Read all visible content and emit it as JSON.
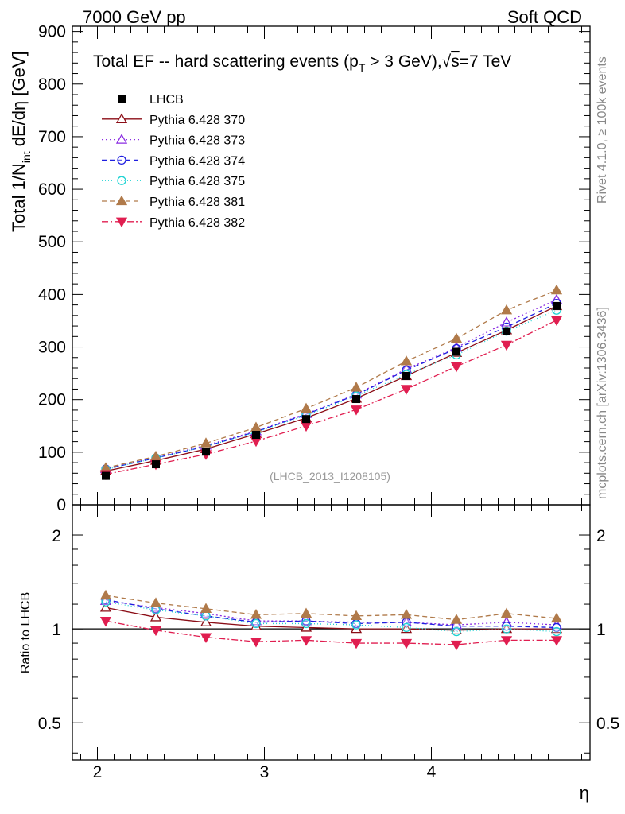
{
  "header": {
    "left": "7000 GeV pp",
    "right": "Soft QCD"
  },
  "side_labels": {
    "top": "Rivet 4.1.0, ≥ 100k events",
    "bottom": "mcplots.cern.ch [arXiv:1306.3436]"
  },
  "watermark": "(LHCB_2013_I1208105)",
  "chart_data": {
    "type": "line",
    "title_parts": {
      "pre": "Total EF -- hard scattering events (p",
      "sub": "T",
      "post": " > 3 GeV),",
      "sqrt": "√",
      "s_label": "s",
      "energy": "=7 TeV"
    },
    "ylabel_parts": {
      "pre": "Total 1/N",
      "sub": "int",
      "post": "  dE/dη [GeV]"
    },
    "xlabel": "η",
    "ratio_ylabel": "Ratio to LHCB",
    "xlim": [
      1.85,
      4.95
    ],
    "ylim": [
      0,
      910
    ],
    "ratio_ylim": [
      0.38,
      2.5
    ],
    "x_ticks": [
      2,
      3,
      4
    ],
    "x_tick_labels": [
      "2",
      "3",
      "4"
    ],
    "y_ticks": [
      0,
      100,
      200,
      300,
      400,
      500,
      600,
      700,
      800,
      900
    ],
    "y_tick_labels": [
      "0",
      "100",
      "200",
      "300",
      "400",
      "500",
      "600",
      "700",
      "800",
      "900"
    ],
    "ratio_ticks": [
      0.5,
      1,
      2
    ],
    "ratio_tick_labels": [
      "0.5",
      "1",
      "2"
    ],
    "x": [
      2.05,
      2.35,
      2.65,
      2.95,
      3.25,
      3.55,
      3.85,
      4.15,
      4.45,
      4.75
    ],
    "data": {
      "name": "LHCB",
      "values": [
        55,
        77,
        101,
        133,
        163,
        201,
        245,
        291,
        330,
        378
      ],
      "color": "#000000"
    },
    "series": [
      {
        "name": "Pythia 6.428 370",
        "values": [
          64,
          84,
          106,
          135,
          165,
          202,
          245,
          289,
          332,
          378
        ],
        "ratio": [
          1.17,
          1.09,
          1.05,
          1.02,
          1.01,
          1.0,
          1.0,
          0.99,
          1.0,
          1.0
        ],
        "color": "#8b0d16",
        "marker": "tri-up-open",
        "dash": ""
      },
      {
        "name": "Pythia 6.428 373",
        "values": [
          68,
          90,
          113,
          140,
          173,
          210,
          258,
          299,
          347,
          390
        ],
        "ratio": [
          1.23,
          1.17,
          1.12,
          1.06,
          1.06,
          1.05,
          1.05,
          1.03,
          1.05,
          1.03
        ],
        "color": "#8a2be2",
        "marker": "tri-up-open",
        "dash": "2,3"
      },
      {
        "name": "Pythia 6.428 374",
        "values": [
          68,
          89,
          111,
          139,
          172,
          209,
          256,
          297,
          338,
          383
        ],
        "ratio": [
          1.24,
          1.16,
          1.1,
          1.05,
          1.06,
          1.04,
          1.05,
          1.02,
          1.02,
          1.01
        ],
        "color": "#1f1fe0",
        "marker": "circle-open",
        "dash": "6,4"
      },
      {
        "name": "Pythia 6.428 375",
        "values": [
          67,
          89,
          111,
          138,
          170,
          207,
          248,
          285,
          330,
          370
        ],
        "ratio": [
          1.22,
          1.15,
          1.1,
          1.04,
          1.04,
          1.03,
          1.01,
          0.98,
          1.0,
          0.98
        ],
        "color": "#1ed3d3",
        "marker": "circle-open",
        "dash": "1,3"
      },
      {
        "name": "Pythia 6.428 381",
        "values": [
          70,
          92,
          117,
          147,
          183,
          223,
          273,
          316,
          370,
          408
        ],
        "ratio": [
          1.28,
          1.21,
          1.16,
          1.11,
          1.12,
          1.1,
          1.11,
          1.07,
          1.12,
          1.08
        ],
        "color": "#b07a4a",
        "marker": "tri-up-filled",
        "dash": "6,4"
      },
      {
        "name": "Pythia 6.428 382",
        "values": [
          58,
          77,
          96,
          121,
          150,
          181,
          220,
          263,
          304,
          351
        ],
        "ratio": [
          1.06,
          0.99,
          0.94,
          0.91,
          0.92,
          0.9,
          0.9,
          0.89,
          0.92,
          0.92
        ],
        "color": "#e01e50",
        "marker": "tri-down-filled",
        "dash": "8,3,2,3"
      }
    ]
  }
}
